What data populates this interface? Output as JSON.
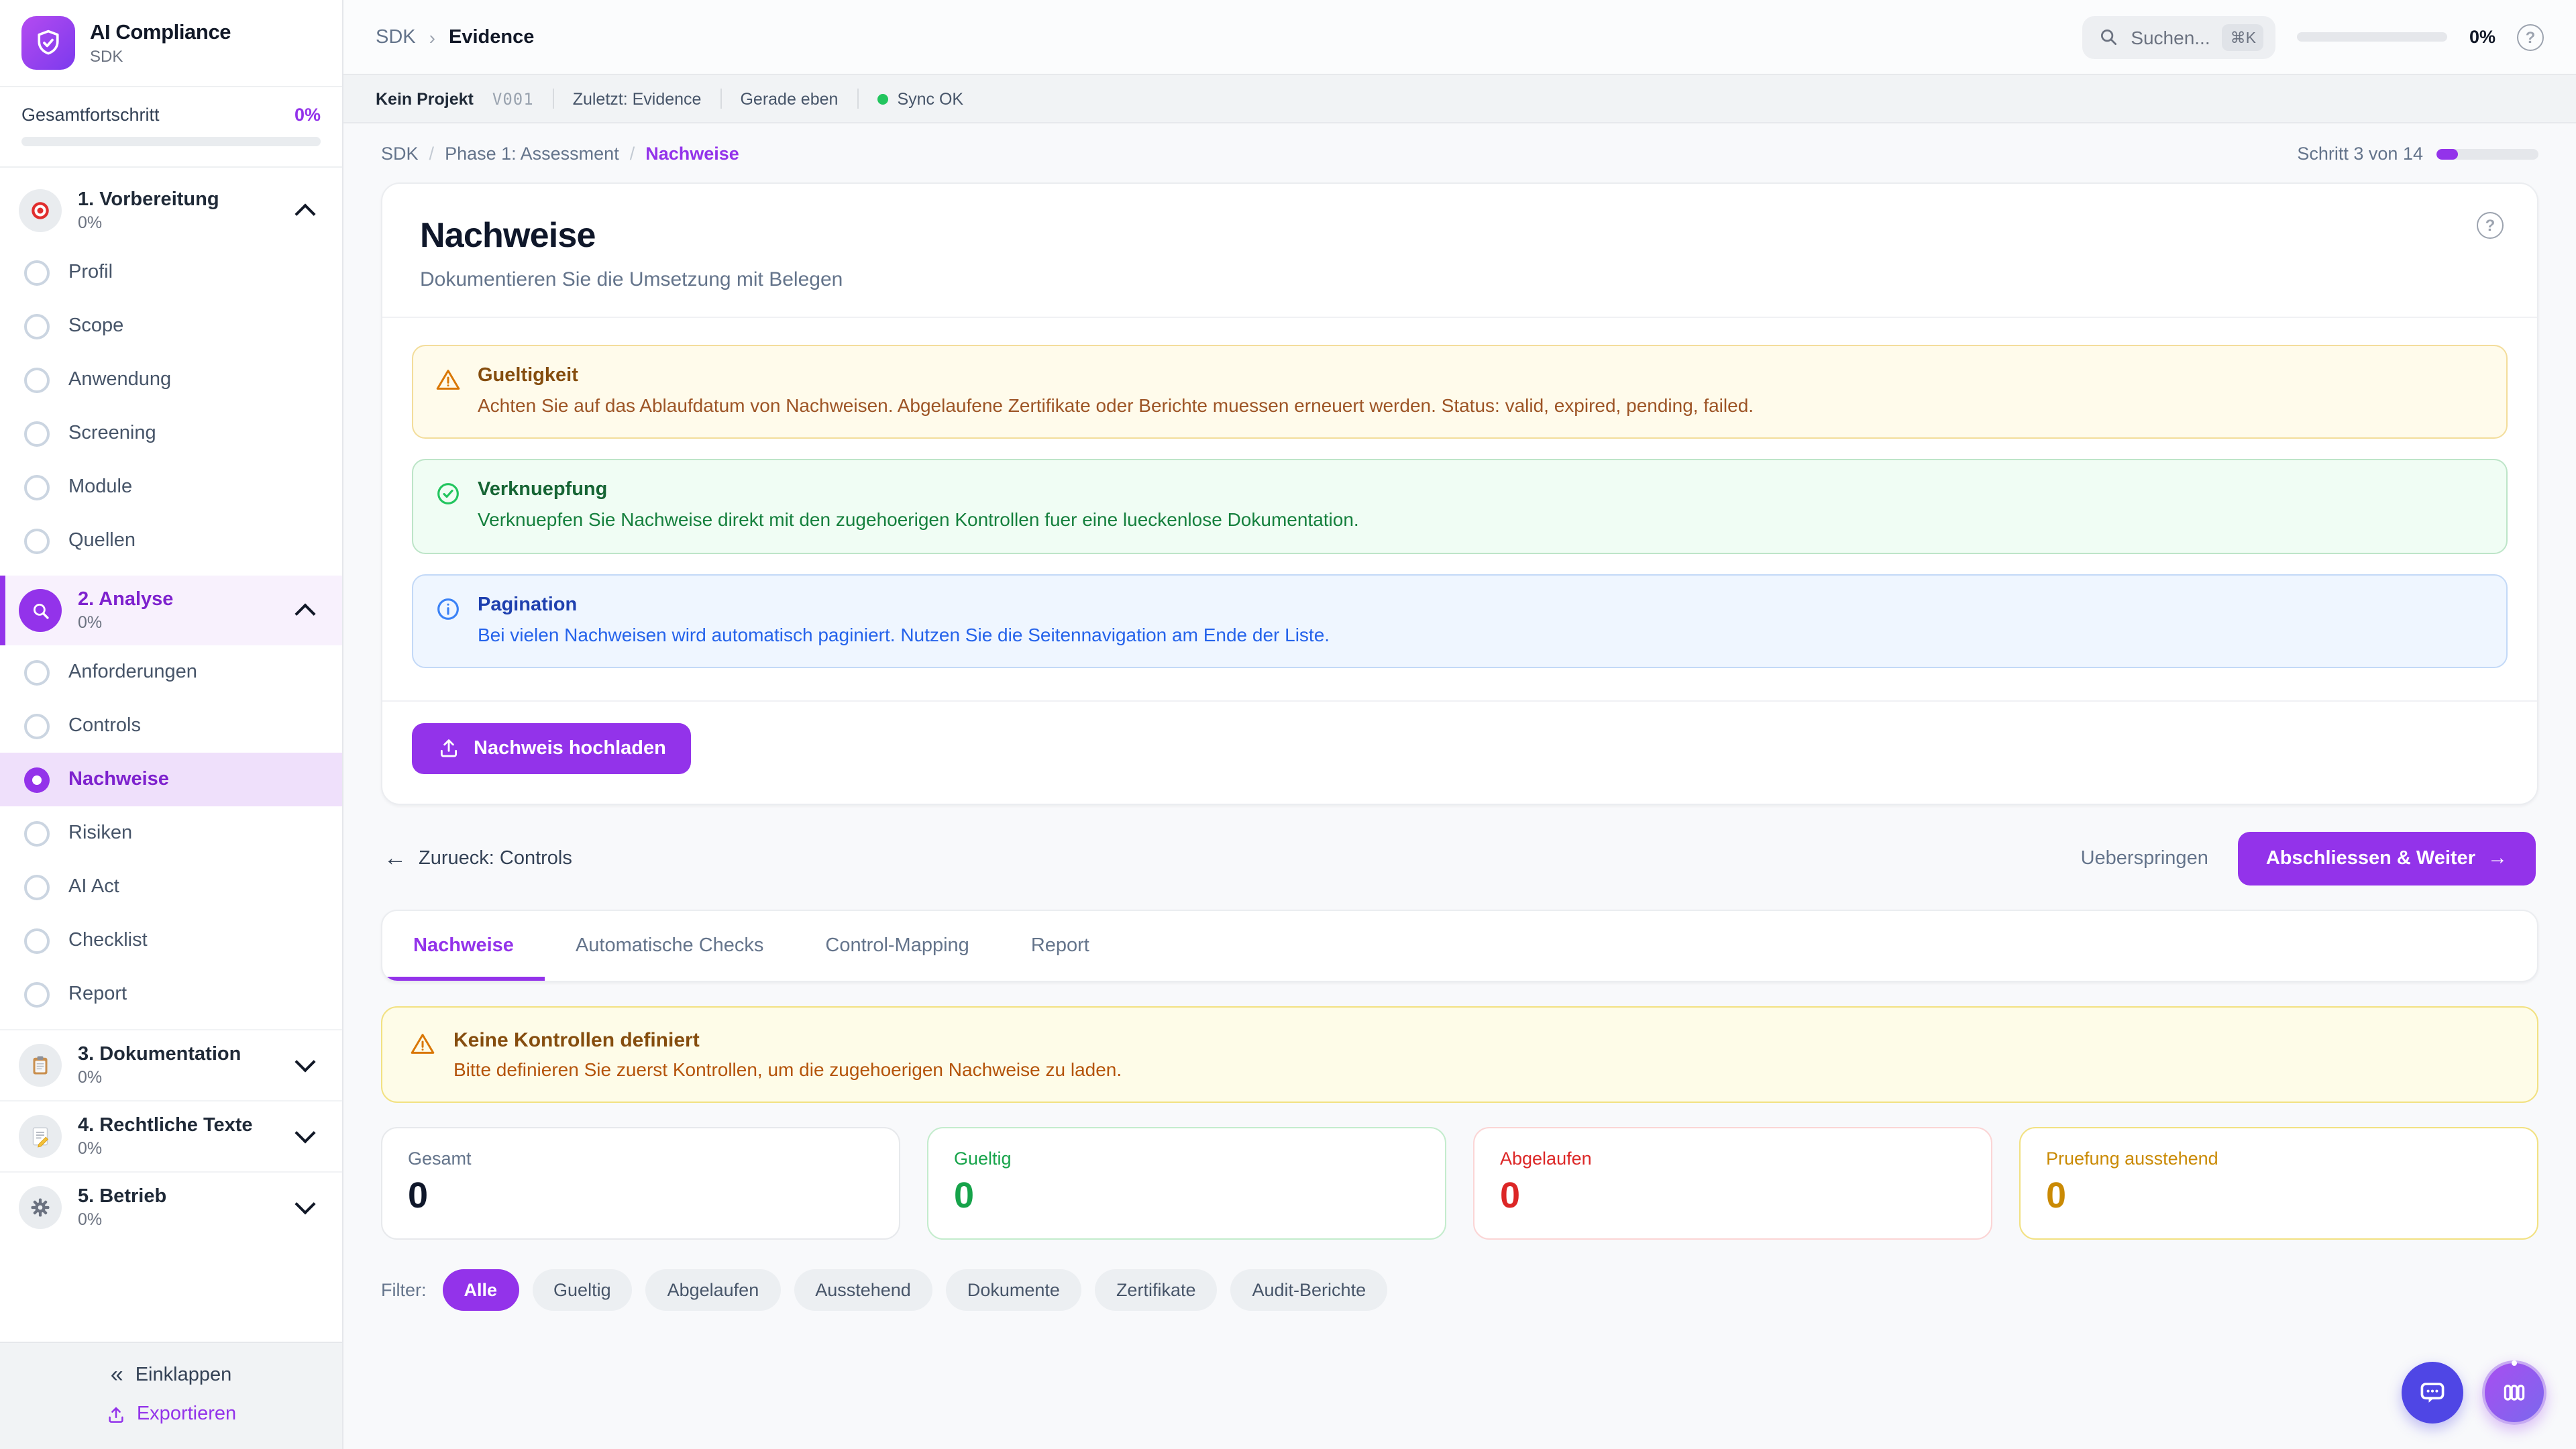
{
  "icons": {
    "help": "?",
    "back_arrow": "←",
    "forward_arrow": "→",
    "collapse": "«",
    "breadcrumb_sep": "›",
    "slash": "/"
  },
  "sidebar": {
    "app_title": "AI Compliance",
    "app_subtitle": "SDK",
    "overall": {
      "label": "Gesamtfortschritt",
      "percent": "0%"
    },
    "sections": [
      {
        "icon": "target-icon",
        "label": "1. Vorbereitung",
        "percent": "0%",
        "items": [
          "Profil",
          "Scope",
          "Anwendung",
          "Screening",
          "Module",
          "Quellen"
        ]
      },
      {
        "icon": "magnifier-icon",
        "label": "2. Analyse",
        "percent": "0%",
        "items": [
          "Anforderungen",
          "Controls",
          "Nachweise",
          "Risiken",
          "AI Act",
          "Checklist",
          "Report"
        ],
        "active_item": "Nachweise"
      },
      {
        "icon": "clipboard-icon",
        "label": "3. Dokumentation",
        "percent": "0%"
      },
      {
        "icon": "memo-icon",
        "label": "4. Rechtliche Texte",
        "percent": "0%"
      },
      {
        "icon": "gear-icon",
        "label": "5. Betrieb",
        "percent": "0%"
      }
    ],
    "footer": {
      "collapse": "Einklappen",
      "export": "Exportieren"
    }
  },
  "topbar": {
    "breadcrumb": [
      "SDK",
      "Evidence"
    ],
    "search": {
      "placeholder": "Suchen...",
      "shortcut": "⌘K"
    },
    "progress_percent": "0%"
  },
  "statusbar": {
    "project": "Kein Projekt",
    "version": "V001",
    "last_visited": "Zuletzt: Evidence",
    "updated": "Gerade eben",
    "sync_status": "Sync OK"
  },
  "main": {
    "breadcrumb": {
      "root": "SDK",
      "phase": "Phase 1: Assessment",
      "current": "Nachweise"
    },
    "step": {
      "label": "Schritt 3 von 14",
      "percent": 21
    },
    "intro": {
      "title": "Nachweise",
      "subtitle": "Dokumentieren Sie die Umsetzung mit Belegen",
      "notices": [
        {
          "type": "warning",
          "title": "Gueltigkeit",
          "body": "Achten Sie auf das Ablaufdatum von Nachweisen. Abgelaufene Zertifikate oder Berichte muessen erneuert werden. Status: valid, expired, pending, failed."
        },
        {
          "type": "success",
          "title": "Verknuepfung",
          "body": "Verknuepfen Sie Nachweise direkt mit den zugehoerigen Kontrollen fuer eine lueckenlose Dokumentation."
        },
        {
          "type": "info",
          "title": "Pagination",
          "body": "Bei vielen Nachweisen wird automatisch paginiert. Nutzen Sie die Seitennavigation am Ende der Liste."
        }
      ],
      "upload_button": "Nachweis hochladen"
    },
    "nav": {
      "back": "Zurueck: Controls",
      "skip": "Ueberspringen",
      "next": "Abschliessen & Weiter"
    },
    "tabs": [
      "Nachweise",
      "Automatische Checks",
      "Control-Mapping",
      "Report"
    ],
    "active_tab": "Nachweise",
    "alert": {
      "title": "Keine Kontrollen definiert",
      "body": "Bitte definieren Sie zuerst Kontrollen, um die zugehoerigen Nachweise zu laden."
    },
    "stats": [
      {
        "label": "Gesamt",
        "value": "0",
        "color": "#0f172a"
      },
      {
        "label": "Gueltig",
        "value": "0",
        "color": "#16a34a"
      },
      {
        "label": "Abgelaufen",
        "value": "0",
        "color": "#dc2626"
      },
      {
        "label": "Pruefung ausstehend",
        "value": "0",
        "color": "#ca8a04"
      }
    ],
    "filter": {
      "label": "Filter:",
      "active_chip": "Alle",
      "chips": [
        "Alle",
        "Gueltig",
        "Abgelaufen",
        "Ausstehend",
        "Dokumente",
        "Zertifikate",
        "Audit-Berichte"
      ]
    }
  },
  "colors": {
    "accent": "#9333ea",
    "sync_ok": "#22c55e",
    "warning": "#d97706",
    "success": "#16a34a",
    "danger": "#dc2626",
    "pending": "#ca8a04",
    "info": "#3b82f6"
  }
}
